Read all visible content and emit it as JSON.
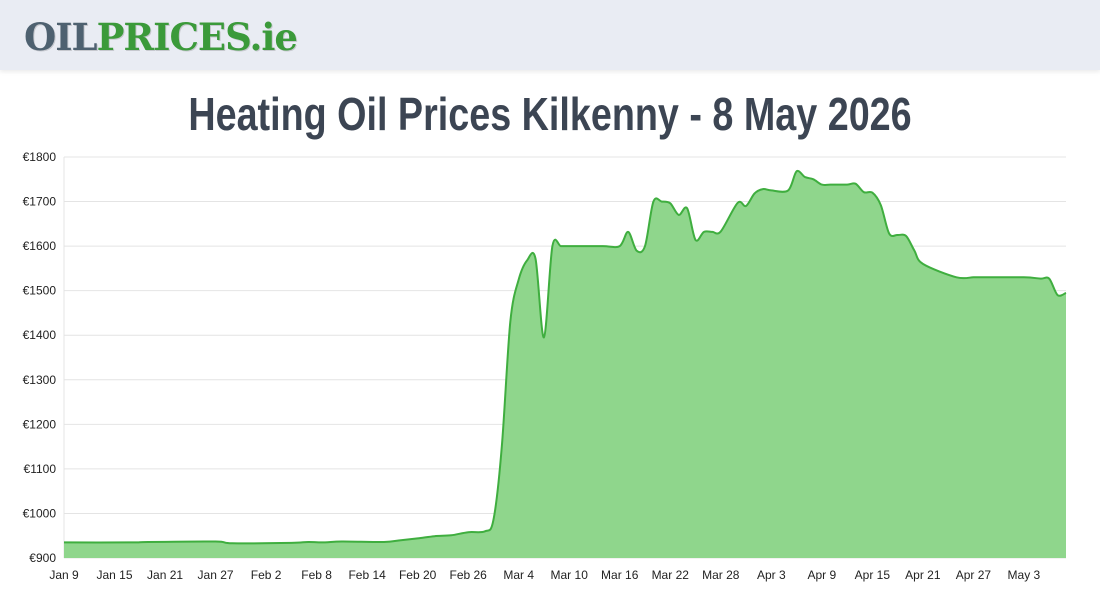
{
  "header": {
    "logo_part1": "OIL",
    "logo_part2": "PRICES",
    "logo_part3": ".ie"
  },
  "colors": {
    "header_bg": "#e9ecf3",
    "line": "#3fae3f",
    "area": "#8fd68c",
    "title": "#3c4553"
  },
  "chart_data": {
    "type": "area",
    "title": "Heating Oil Prices Kilkenny - 8 May 2026",
    "xlabel": "",
    "ylabel": "",
    "ylim": [
      900,
      1800
    ],
    "yticks": [
      900,
      1000,
      1100,
      1200,
      1300,
      1400,
      1500,
      1600,
      1700,
      1800
    ],
    "ytick_labels": [
      "€900",
      "€1000",
      "€1100",
      "€1200",
      "€1300",
      "€1400",
      "€1500",
      "€1600",
      "€1700",
      "€1800"
    ],
    "x_start": "2026-01-09",
    "x_end": "2026-05-08",
    "xtick_labels": [
      "Jan 9",
      "Jan 15",
      "Jan 21",
      "Jan 27",
      "Feb 2",
      "Feb 8",
      "Feb 14",
      "Feb 20",
      "Feb 26",
      "Mar 4",
      "Mar 10",
      "Mar 16",
      "Mar 22",
      "Mar 28",
      "Apr 3",
      "Apr 9",
      "Apr 15",
      "Apr 21",
      "Apr 27",
      "May 3"
    ],
    "xtick_dates": [
      "2026-01-09",
      "2026-01-15",
      "2026-01-21",
      "2026-01-27",
      "2026-02-02",
      "2026-02-08",
      "2026-02-14",
      "2026-02-20",
      "2026-02-26",
      "2026-03-04",
      "2026-03-10",
      "2026-03-16",
      "2026-03-22",
      "2026-03-28",
      "2026-04-03",
      "2026-04-09",
      "2026-04-15",
      "2026-04-21",
      "2026-04-27",
      "2026-05-03"
    ],
    "grid": true,
    "legend": "none",
    "series": [
      {
        "dates": [
          "2026-01-09",
          "2026-01-17",
          "2026-01-19",
          "2026-01-27",
          "2026-01-29",
          "2026-02-05",
          "2026-02-07",
          "2026-02-09",
          "2026-02-11",
          "2026-02-16",
          "2026-02-18",
          "2026-02-20",
          "2026-02-22",
          "2026-02-24",
          "2026-02-26",
          "2026-02-28",
          "2026-03-01",
          "2026-03-02",
          "2026-03-03",
          "2026-03-04",
          "2026-03-05",
          "2026-03-06",
          "2026-03-07",
          "2026-03-08",
          "2026-03-09",
          "2026-03-10",
          "2026-03-14",
          "2026-03-16",
          "2026-03-17",
          "2026-03-18",
          "2026-03-19",
          "2026-03-20",
          "2026-03-21",
          "2026-03-22",
          "2026-03-23",
          "2026-03-24",
          "2026-03-25",
          "2026-03-26",
          "2026-03-27",
          "2026-03-28",
          "2026-03-30",
          "2026-03-31",
          "2026-04-01",
          "2026-04-02",
          "2026-04-03",
          "2026-04-05",
          "2026-04-06",
          "2026-04-07",
          "2026-04-08",
          "2026-04-09",
          "2026-04-10",
          "2026-04-12",
          "2026-04-13",
          "2026-04-14",
          "2026-04-15",
          "2026-04-16",
          "2026-04-17",
          "2026-04-18",
          "2026-04-19",
          "2026-04-20",
          "2026-04-21",
          "2026-04-25",
          "2026-04-27",
          "2026-04-28",
          "2026-05-03",
          "2026-05-05",
          "2026-05-06",
          "2026-05-07",
          "2026-05-08"
        ],
        "values": [
          935,
          935,
          936,
          937,
          933,
          934,
          936,
          935,
          937,
          936,
          940,
          944,
          949,
          951,
          958,
          960,
          985,
          1150,
          1430,
          1525,
          1568,
          1572,
          1395,
          1600,
          1600,
          1600,
          1600,
          1600,
          1632,
          1590,
          1600,
          1700,
          1700,
          1696,
          1670,
          1685,
          1614,
          1632,
          1632,
          1633,
          1697,
          1690,
          1718,
          1728,
          1725,
          1725,
          1768,
          1755,
          1750,
          1738,
          1738,
          1738,
          1740,
          1721,
          1720,
          1692,
          1628,
          1625,
          1623,
          1590,
          1560,
          1530,
          1530,
          1530,
          1530,
          1527,
          1527,
          1490,
          1495
        ]
      }
    ]
  }
}
